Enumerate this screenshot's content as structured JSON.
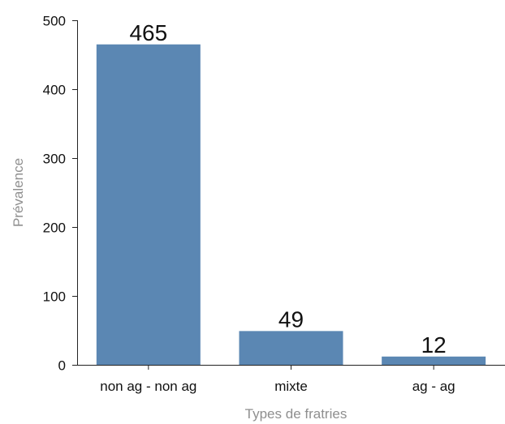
{
  "chart_data": {
    "type": "bar",
    "categories": [
      "non ag - non ag",
      "mixte",
      "ag - ag"
    ],
    "values": [
      465,
      49,
      12
    ],
    "data_labels": [
      "465",
      "49",
      "12"
    ],
    "title": "",
    "xlabel": "Types de fratries",
    "ylabel": "Prévalence",
    "ylim": [
      0,
      500
    ],
    "yticks": [
      0,
      100,
      200,
      300,
      400,
      500
    ],
    "grid": false,
    "legend": "none",
    "bar_color": "#5b87b3"
  }
}
